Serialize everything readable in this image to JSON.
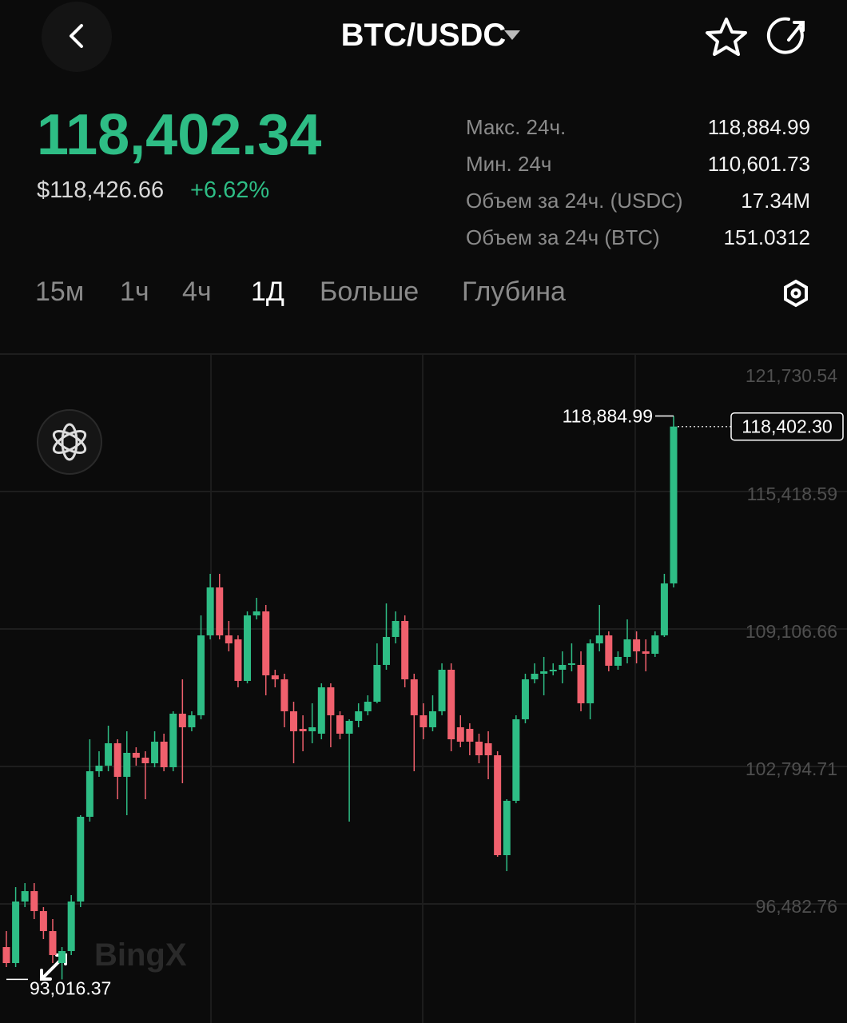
{
  "header": {
    "title": "BTC/USDC"
  },
  "price": {
    "last": "118,402.34",
    "usd": "$118,426.66",
    "change": "+6.62%"
  },
  "stats": [
    {
      "label": "Макс. 24ч.",
      "value": "118,884.99"
    },
    {
      "label": "Мин. 24ч",
      "value": "110,601.73"
    },
    {
      "label": "Объем за 24ч. (USDC)",
      "value": "17.34M"
    },
    {
      "label": "Объем за 24ч (BTC)",
      "value": "151.0312"
    }
  ],
  "tabs": [
    "15м",
    "1ч",
    "4ч",
    "1Д",
    "Больше",
    "Глубина"
  ],
  "active_tab": 3,
  "chart_data": {
    "type": "candlestick",
    "up_color": "#2ebd85",
    "down_color": "#f0606d",
    "ylim": [
      91014,
      121730.54
    ],
    "yticks": [
      {
        "value": 121730.54,
        "label": "121,730.54"
      },
      {
        "value": 115418.59,
        "label": "115,418.59"
      },
      {
        "value": 109106.66,
        "label": "109,106.66"
      },
      {
        "value": 102794.71,
        "label": "102,794.71"
      },
      {
        "value": 96482.76,
        "label": "96,482.76"
      }
    ],
    "grid": true,
    "high_marker": {
      "value": 118884.99,
      "label": "118,884.99"
    },
    "low_marker": {
      "value": 93016.37,
      "label": "93,016.37"
    },
    "last_price": {
      "value": 118402.3,
      "label": "118,402.30"
    },
    "watermark": "BingX",
    "open": [
      94500,
      93766,
      96592,
      97069,
      96152,
      95234,
      93766,
      94317,
      96592,
      100483,
      102574,
      102831,
      103859,
      102318,
      103419,
      103198,
      102941,
      103932,
      102758,
      105217,
      104593,
      105143,
      108813,
      111015,
      108813,
      108630,
      106722,
      109731,
      109914,
      106978,
      106795,
      105327,
      104520,
      104409,
      104299,
      106428,
      105143,
      104299,
      104887,
      105327,
      105767,
      107456,
      108740,
      109474,
      106795,
      105143,
      104593,
      105327,
      107235,
      104593,
      104520,
      103932,
      103859,
      103308,
      98721,
      101217,
      104960,
      106795,
      107052,
      107162,
      107235,
      107456,
      107456,
      105694,
      108446,
      108813,
      107419,
      107823,
      108630,
      108079,
      107969,
      108813,
      111199
    ],
    "high": [
      95234,
      97253,
      97436,
      97436,
      96335,
      95785,
      94500,
      96886,
      100556,
      104042,
      103492,
      104666,
      104042,
      104409,
      103675,
      103492,
      104409,
      104299,
      105327,
      106795,
      105327,
      109731,
      111639,
      111639,
      109474,
      108813,
      109914,
      110538,
      110208,
      107235,
      107052,
      105767,
      105143,
      105694,
      106611,
      106611,
      105327,
      104960,
      105694,
      106061,
      108446,
      110281,
      109914,
      109731,
      107052,
      105694,
      106061,
      107529,
      107529,
      105143,
      104776,
      104299,
      104409,
      103492,
      101290,
      105143,
      107052,
      107529,
      107823,
      107529,
      108079,
      108446,
      108079,
      108630,
      110208,
      108997,
      108079,
      109547,
      108997,
      108630,
      108997,
      111639,
      118884.99
    ],
    "low": [
      93583,
      93583,
      96335,
      95785,
      94867,
      93766,
      93016.37,
      94133,
      96335,
      100262,
      102318,
      102574,
      101290,
      100556,
      102831,
      101290,
      102758,
      102574,
      102574,
      102024,
      104409,
      104960,
      108630,
      108630,
      108079,
      106428,
      106611,
      109547,
      106061,
      106428,
      104593,
      102941,
      103492,
      103859,
      104042,
      103675,
      104042,
      100262,
      104593,
      105143,
      105694,
      107235,
      108446,
      106428,
      102574,
      104042,
      104409,
      105143,
      103492,
      103675,
      103308,
      102941,
      102207,
      98648,
      97987,
      101106,
      104776,
      106611,
      106061,
      106978,
      106611,
      107162,
      105327,
      104960,
      108079,
      107162,
      107235,
      107529,
      107529,
      107162,
      107823,
      108740,
      111015
    ],
    "close": [
      93766,
      96592,
      97069,
      96152,
      95234,
      94133,
      94317,
      96592,
      100483,
      102574,
      102831,
      103859,
      102318,
      103419,
      103198,
      102941,
      103932,
      102758,
      105217,
      104593,
      105143,
      108813,
      111015,
      108813,
      108446,
      106722,
      109731,
      109914,
      106978,
      106795,
      105327,
      104409,
      104409,
      104593,
      106428,
      105143,
      104299,
      104887,
      105327,
      105767,
      107456,
      108740,
      109474,
      106795,
      105143,
      104593,
      105327,
      107235,
      104042,
      103932,
      103932,
      103308,
      103308,
      98721,
      101217,
      104960,
      106795,
      107052,
      107162,
      107235,
      107456,
      107529,
      105694,
      108446,
      108813,
      107419,
      107823,
      108630,
      108079,
      107969,
      108813,
      111199,
      118402.3
    ]
  }
}
